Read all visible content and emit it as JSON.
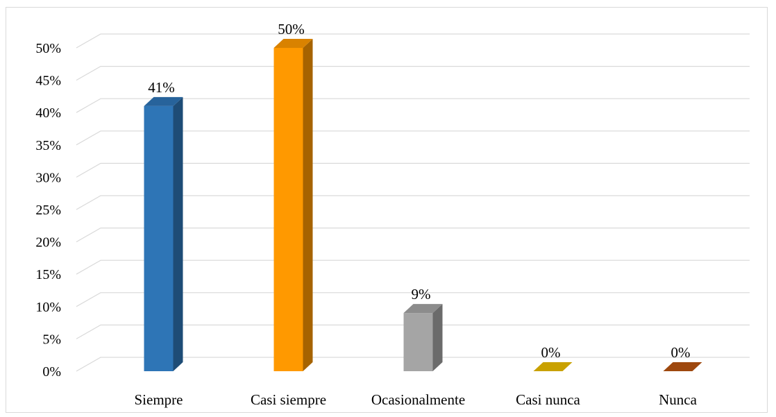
{
  "chart_data": {
    "type": "bar",
    "categories": [
      "Siempre",
      "Casi siempre",
      "Ocasionalmente",
      "Casi nunca",
      "Nunca"
    ],
    "values": [
      41,
      50,
      9,
      0,
      0
    ],
    "data_labels": [
      "41%",
      "50%",
      "9%",
      "0%",
      "0%"
    ],
    "y_ticks": [
      "0%",
      "5%",
      "10%",
      "15%",
      "20%",
      "25%",
      "30%",
      "35%",
      "40%",
      "45%",
      "50%"
    ],
    "ylim": [
      0,
      50
    ],
    "grid": true,
    "legend": false,
    "style": "3d-column",
    "colors": [
      "#2e75b6",
      "#ff9900",
      "#a5a5a5",
      "#c9a100",
      "#9e480e"
    ]
  }
}
